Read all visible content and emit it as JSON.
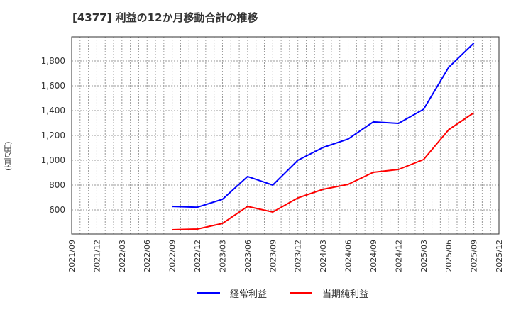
{
  "title": "[4377]  利益の12か月移動合計の推移",
  "y_axis_label": "(百万円)",
  "legend": [
    {
      "label": "経常利益",
      "color": "#0000ff"
    },
    {
      "label": "当期純利益",
      "color": "#ff0000"
    }
  ],
  "chart_data": {
    "type": "line",
    "title": "[4377]  利益の12か月移動合計の推移",
    "xlabel": "",
    "ylabel": "(百万円)",
    "x_ticks": [
      "2021/09",
      "2021/12",
      "2022/03",
      "2022/06",
      "2022/09",
      "2022/12",
      "2023/03",
      "2023/06",
      "2023/09",
      "2023/12",
      "2024/03",
      "2024/06",
      "2024/09",
      "2024/12",
      "2025/03",
      "2025/06",
      "2025/09",
      "2025/12"
    ],
    "y_ticks": [
      600,
      800,
      1000,
      1200,
      1400,
      1600,
      1800
    ],
    "y_tick_labels": [
      "600",
      "800",
      "1,000",
      "1,200",
      "1,400",
      "1,600",
      "1,800"
    ],
    "ylim": [
      406,
      1994
    ],
    "grid": true,
    "legend_position": "bottom",
    "categories": [
      "2022/09",
      "2022/12",
      "2023/03",
      "2023/06",
      "2023/09",
      "2023/12",
      "2024/03",
      "2024/06",
      "2024/09",
      "2024/12",
      "2025/03",
      "2025/06",
      "2025/09"
    ],
    "series": [
      {
        "name": "経常利益",
        "color": "#0000ff",
        "values": [
          628,
          622,
          686,
          869,
          800,
          1000,
          1103,
          1171,
          1309,
          1297,
          1411,
          1749,
          1943
        ]
      },
      {
        "name": "当期純利益",
        "color": "#ff0000",
        "values": [
          440,
          446,
          491,
          628,
          583,
          697,
          766,
          806,
          903,
          926,
          1006,
          1246,
          1383
        ]
      }
    ]
  }
}
